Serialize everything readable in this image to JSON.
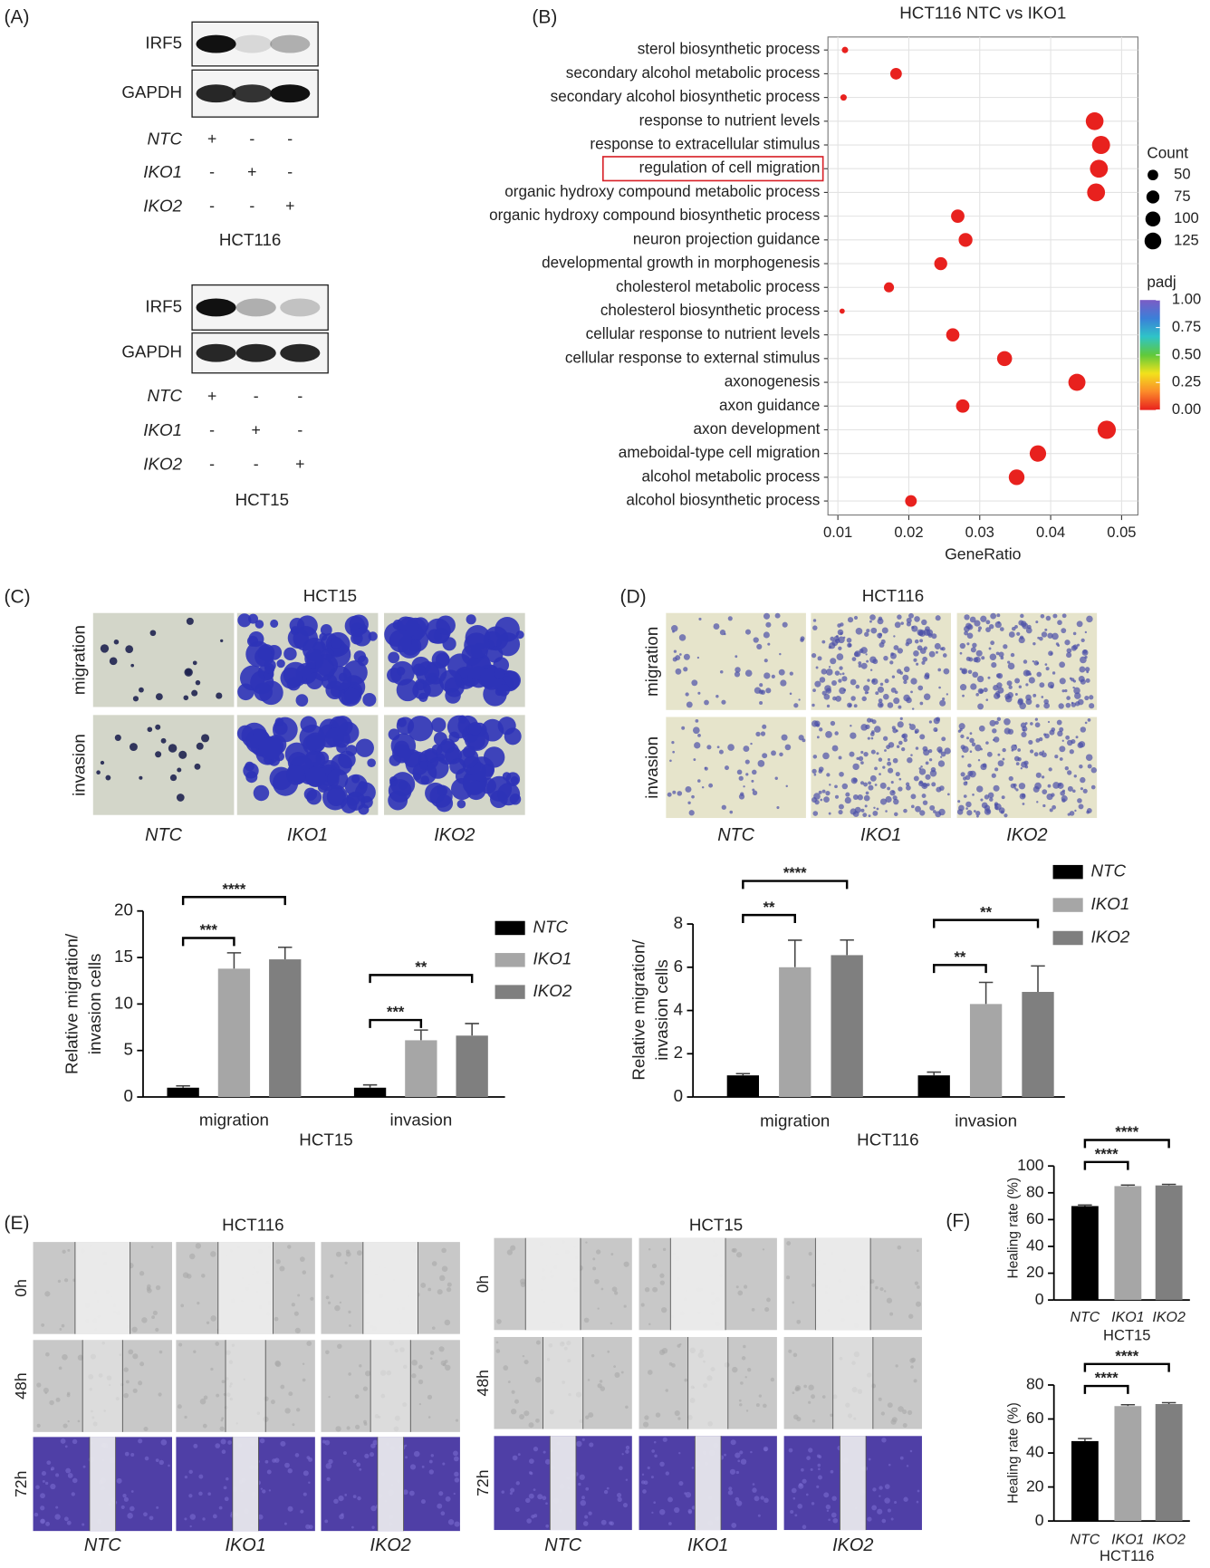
{
  "panel_labels": [
    "(A)",
    "(B)",
    "(C)",
    "(D)",
    "(E)",
    "(F)"
  ],
  "panel_a": {
    "blots": [
      {
        "bands": [
          "IRF5",
          "GAPDH"
        ],
        "conditions": [
          "NTC",
          "IKO1",
          "IKO2"
        ],
        "signs": [
          [
            "+",
            "-",
            "-"
          ],
          [
            "-",
            "+",
            "-"
          ],
          [
            "-",
            "-",
            "+"
          ]
        ],
        "cell_line": "HCT116"
      },
      {
        "bands": [
          "IRF5",
          "GAPDH"
        ],
        "conditions": [
          "NTC",
          "IKO1",
          "IKO2"
        ],
        "signs": [
          [
            "+",
            "-",
            "-"
          ],
          [
            "-",
            "+",
            "-"
          ],
          [
            "-",
            "-",
            "+"
          ]
        ],
        "cell_line": "HCT15"
      }
    ]
  },
  "panel_c_images": {
    "title": "HCT15",
    "rows": [
      "migration",
      "invasion"
    ],
    "columns": [
      "NTC",
      "IKO1",
      "IKO2"
    ]
  },
  "panel_d_images": {
    "title": "HCT116",
    "rows": [
      "migration",
      "invasion"
    ],
    "columns": [
      "NTC",
      "IKO1",
      "IKO2"
    ]
  },
  "panel_e": {
    "groups": [
      {
        "title": "HCT116",
        "rows": [
          "0h",
          "48h",
          "72h"
        ],
        "columns": [
          "NTC",
          "IKO1",
          "IKO2"
        ]
      },
      {
        "title": "HCT15",
        "rows": [
          "0h",
          "48h",
          "72h"
        ],
        "columns": [
          "NTC",
          "IKO1",
          "IKO2"
        ]
      }
    ]
  },
  "chart_data": [
    {
      "type": "dot",
      "title": "HCT116 NTC vs IKO1",
      "categories": [
        "sterol biosynthetic process",
        "secondary alcohol metabolic process",
        "secondary alcohol biosynthetic process",
        "response to nutrient levels",
        "response to extracellular stimulus",
        "regulation of cell migration",
        "organic hydroxy compound metabolic process",
        "organic hydroxy compound biosynthetic process",
        "neuron projection guidance",
        "developmental growth in morphogenesis",
        "cholesterol metabolic process",
        "cholesterol biosynthetic process",
        "cellular response to nutrient levels",
        "cellular response to external stimulus",
        "axonogenesis",
        "axon guidance",
        "axon development",
        "ameboidal-type cell migration",
        "alcohol metabolic process",
        "alcohol biosynthetic process"
      ],
      "values": [
        0.011,
        0.0182,
        0.0108,
        0.0462,
        0.0471,
        0.0468,
        0.0464,
        0.0269,
        0.028,
        0.0245,
        0.0172,
        0.0106,
        0.0262,
        0.0335,
        0.0437,
        0.0276,
        0.0479,
        0.0382,
        0.0352,
        0.0203
      ],
      "sizes": [
        18,
        60,
        18,
        140,
        145,
        143,
        142,
        80,
        85,
        75,
        45,
        12,
        78,
        100,
        130,
        80,
        148,
        120,
        110,
        60
      ],
      "padj": [
        0,
        0,
        0,
        0,
        0,
        0,
        0,
        0,
        0,
        0,
        0,
        0,
        0,
        0,
        0,
        0,
        0,
        0,
        0,
        0
      ],
      "x_label": "GeneRatio",
      "xlim": [
        0.0086,
        0.0523
      ],
      "xticks": [
        0.01,
        0.02,
        0.03,
        0.04,
        0.05
      ],
      "grid": true,
      "size_legend": {
        "title": "Count",
        "values": [
          50,
          75,
          100,
          125
        ]
      },
      "color_legend": {
        "title": "padj",
        "colors": [
          "#e8211e",
          "#fb8b2a",
          "#f2e21c",
          "#5fc93b",
          "#2fc4c8",
          "#3b7fd8",
          "#7b5cc5"
        ],
        "ticks": [
          {
            "value": 1,
            "label": "1.00"
          },
          {
            "value": 0.75,
            "label": "0.75"
          },
          {
            "value": 0.5,
            "label": "0.50"
          },
          {
            "value": 0.25,
            "label": "0.25"
          },
          {
            "value": 0,
            "label": "0.00"
          }
        ]
      }
    },
    {
      "type": "bar",
      "categories": [
        "migration",
        "invasion"
      ],
      "series": [
        {
          "name": "NTC",
          "color": "#000000",
          "values": [
            1,
            1
          ],
          "errors": [
            0.2,
            0.3
          ]
        },
        {
          "name": "IKO1",
          "color": "#a6a6a6",
          "values": [
            13.8,
            6.1
          ],
          "errors": [
            1.7,
            1.1
          ]
        },
        {
          "name": "IKO2",
          "color": "#7f7f7f",
          "values": [
            14.8,
            6.6
          ],
          "errors": [
            1.3,
            1.3
          ]
        }
      ],
      "ylim": [
        0,
        20
      ],
      "yticks": [
        0,
        5,
        10,
        15,
        20
      ],
      "y_label": [
        "Relative migration/",
        "invasion cells"
      ],
      "x_label": "HCT15",
      "annotations": [
        "***",
        "****",
        "***",
        "**"
      ]
    },
    {
      "type": "bar",
      "categories": [
        "migration",
        "invasion"
      ],
      "series": [
        {
          "name": "NTC",
          "color": "#000000",
          "values": [
            1,
            1
          ],
          "errors": [
            0.08,
            0.15
          ]
        },
        {
          "name": "IKO1",
          "color": "#a6a6a6",
          "values": [
            6,
            4.3
          ],
          "errors": [
            1.25,
            1
          ]
        },
        {
          "name": "IKO2",
          "color": "#7f7f7f",
          "values": [
            6.56,
            4.86
          ],
          "errors": [
            0.7,
            1.2
          ]
        }
      ],
      "ylim": [
        0,
        8
      ],
      "yticks": [
        0,
        2,
        4,
        6,
        8
      ],
      "y_label": [
        "Relative migration/",
        "invasion cells"
      ],
      "x_label": "HCT116",
      "annotations": [
        "**",
        "****",
        "**",
        "**"
      ]
    },
    {
      "type": "simplebar",
      "categories": [
        "NTC",
        "IKO1",
        "IKO2"
      ],
      "values": [
        70.1,
        85,
        85.5
      ],
      "errors": [
        0.8,
        0.8,
        0.8
      ],
      "colors": [
        "#000000",
        "#a6a6a6",
        "#7f7f7f"
      ],
      "ylim": [
        0,
        100
      ],
      "yticks": [
        0,
        20,
        40,
        60,
        80,
        100
      ],
      "y_label": [
        "Healing rate (%)"
      ],
      "x_label": "HCT15",
      "annotations": [
        "****",
        "****"
      ]
    },
    {
      "type": "simplebar",
      "categories": [
        "NTC",
        "IKO1",
        "IKO2"
      ],
      "values": [
        47,
        67.6,
        68.8
      ],
      "errors": [
        1.5,
        0.8,
        0.8
      ],
      "colors": [
        "#000000",
        "#a6a6a6",
        "#7f7f7f"
      ],
      "ylim": [
        0,
        80
      ],
      "yticks": [
        0,
        20,
        40,
        60,
        80
      ],
      "y_label": [
        "Healing rate (%)"
      ],
      "x_label": "HCT116",
      "annotations": [
        "****",
        "****"
      ]
    }
  ]
}
